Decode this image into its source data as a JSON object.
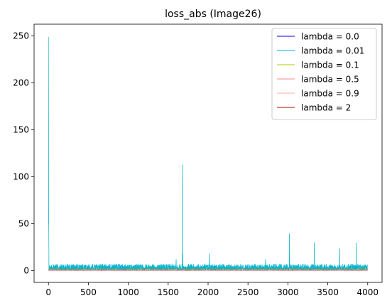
{
  "chart_data": {
    "type": "line",
    "title": "loss_abs (Image26)",
    "xlabel": "",
    "ylabel": "",
    "xlim": [
      -180,
      4180
    ],
    "ylim": [
      -12.5,
      262.5
    ],
    "x_ticks": [
      0,
      500,
      1000,
      1500,
      2000,
      2500,
      3000,
      3500,
      4000
    ],
    "y_ticks": [
      0,
      50,
      100,
      150,
      200,
      250
    ],
    "grid": false,
    "legend_position": "upper-right",
    "series": [
      {
        "name": "lambda = 0.0",
        "color": "#0000cc",
        "baseline": 0.5,
        "noise": 0.3,
        "spikes": []
      },
      {
        "name": "lambda = 0.01",
        "color": "#00aaee",
        "baseline": 1.8,
        "noise": 2.8,
        "spikes": [
          [
            0,
            249
          ],
          [
            3,
            57
          ],
          [
            5,
            48
          ],
          [
            1680,
            113
          ],
          [
            1685,
            18
          ],
          [
            2020,
            18.5
          ],
          [
            3020,
            39.5
          ],
          [
            3330,
            30
          ],
          [
            3650,
            23.5
          ],
          [
            3860,
            29.5
          ],
          [
            2720,
            12
          ],
          [
            1600,
            12
          ]
        ]
      },
      {
        "name": "lambda = 0.1",
        "color": "#aacc00",
        "baseline": 0.8,
        "noise": 0.6,
        "spikes": []
      },
      {
        "name": "lambda = 0.5",
        "color": "#ff8888",
        "baseline": 0.6,
        "noise": 0.4,
        "spikes": []
      },
      {
        "name": "lambda = 0.9",
        "color": "#ffaaaa",
        "baseline": 0.6,
        "noise": 0.4,
        "spikes": []
      },
      {
        "name": "lambda = 2",
        "color": "#aa1100",
        "baseline": 0.4,
        "noise": 0.2,
        "spikes": []
      }
    ],
    "overlay_color": "#00bbbb",
    "overlay_baseline": 1.6,
    "overlay_noise": 2.5,
    "n_points": 4000
  }
}
